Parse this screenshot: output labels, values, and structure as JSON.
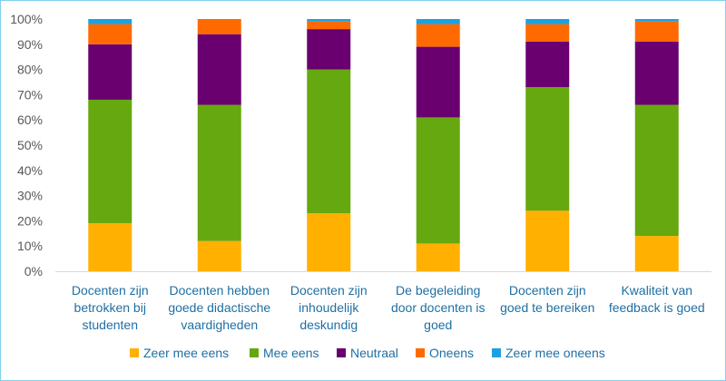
{
  "chart_data": {
    "type": "bar",
    "stacked": true,
    "normalized": true,
    "categories": [
      [
        "Docenten zijn",
        "betrokken bij",
        "studenten"
      ],
      [
        "Docenten hebben",
        "goede didactische",
        "vaardigheden"
      ],
      [
        "Docenten zijn",
        "inhoudelijk",
        "deskundig"
      ],
      [
        "De begeleiding",
        "door docenten is",
        "goed"
      ],
      [
        "Docenten zijn",
        "goed te bereiken"
      ],
      [
        "Kwaliteit van",
        "feedback is goed"
      ]
    ],
    "series": [
      {
        "name": "Zeer mee eens",
        "color": "#ffb000",
        "values": [
          19,
          12,
          23,
          11,
          24,
          14
        ]
      },
      {
        "name": "Mee eens",
        "color": "#66a80f",
        "values": [
          49,
          54,
          57,
          50,
          49,
          52
        ]
      },
      {
        "name": "Neutraal",
        "color": "#6a0070",
        "values": [
          22,
          28,
          16,
          28,
          18,
          25
        ]
      },
      {
        "name": "Oneens",
        "color": "#ff6a00",
        "values": [
          8,
          6,
          3,
          9,
          7,
          8
        ]
      },
      {
        "name": "Zeer mee oneens",
        "color": "#1ba1e2",
        "values": [
          2,
          0,
          1,
          2,
          2,
          1
        ]
      }
    ],
    "yticks": [
      "0%",
      "10%",
      "20%",
      "30%",
      "40%",
      "50%",
      "60%",
      "70%",
      "80%",
      "90%",
      "100%"
    ],
    "ylim": [
      0,
      100
    ],
    "grid": false,
    "legend": "bottom"
  }
}
